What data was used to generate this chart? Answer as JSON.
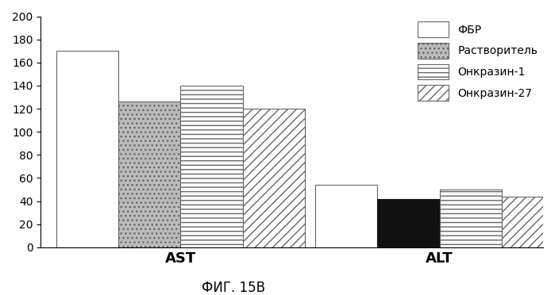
{
  "categories": [
    "AST",
    "ALT"
  ],
  "series": [
    {
      "label": "ФБР",
      "values": [
        170,
        54
      ],
      "facecolor": "white",
      "hatch": "",
      "edgecolor": "#666666"
    },
    {
      "label": "Растворитель",
      "values": [
        126,
        42
      ],
      "facecolor": "#bbbbbb",
      "hatch": "...",
      "edgecolor": "#666666",
      "alt_facecolor": "#111111",
      "alt_hatch": ""
    },
    {
      "label": "Онкразин-1",
      "values": [
        140,
        50
      ],
      "facecolor": "white",
      "hatch": "---",
      "edgecolor": "#666666"
    },
    {
      "label": "Онкразин-27",
      "values": [
        120,
        44
      ],
      "facecolor": "white",
      "hatch": "///",
      "edgecolor": "#666666"
    }
  ],
  "ylim": [
    0,
    200
  ],
  "yticks": [
    0,
    20,
    40,
    60,
    80,
    100,
    120,
    140,
    160,
    180,
    200
  ],
  "xlabel_fontsize": 13,
  "tick_fontsize": 10,
  "legend_fontsize": 10,
  "caption": "ФИГ. 15В",
  "caption_fontsize": 12,
  "bar_width": 0.12,
  "group_centers": [
    0.22,
    0.72
  ],
  "background_color": "#ffffff",
  "figsize": [
    6.99,
    3.72
  ]
}
